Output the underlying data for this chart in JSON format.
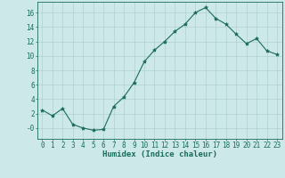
{
  "x": [
    0,
    1,
    2,
    3,
    4,
    5,
    6,
    7,
    8,
    9,
    10,
    11,
    12,
    13,
    14,
    15,
    16,
    17,
    18,
    19,
    20,
    21,
    22,
    23
  ],
  "y": [
    2.5,
    1.7,
    2.7,
    0.5,
    0.0,
    -0.3,
    -0.2,
    3.0,
    4.3,
    6.3,
    9.2,
    10.8,
    12.0,
    13.4,
    14.4,
    16.0,
    16.7,
    15.2,
    14.4,
    13.0,
    11.7,
    12.4,
    10.7,
    10.2
  ],
  "line_color": "#1a6b5a",
  "marker": "*",
  "marker_size": 3,
  "background_color": "#cce8e8",
  "grid_color": "#b0d0d0",
  "xlabel": "Humidex (Indice chaleur)",
  "ylim": [
    -1.5,
    17.5
  ],
  "yticks": [
    0,
    2,
    4,
    6,
    8,
    10,
    12,
    14,
    16
  ],
  "ytick_labels": [
    "-0",
    "2",
    "4",
    "6",
    "8",
    "10",
    "12",
    "14",
    "16"
  ],
  "xticks": [
    0,
    1,
    2,
    3,
    4,
    5,
    6,
    7,
    8,
    9,
    10,
    11,
    12,
    13,
    14,
    15,
    16,
    17,
    18,
    19,
    20,
    21,
    22,
    23
  ],
  "tick_fontsize": 5.5,
  "label_fontsize": 6.5
}
